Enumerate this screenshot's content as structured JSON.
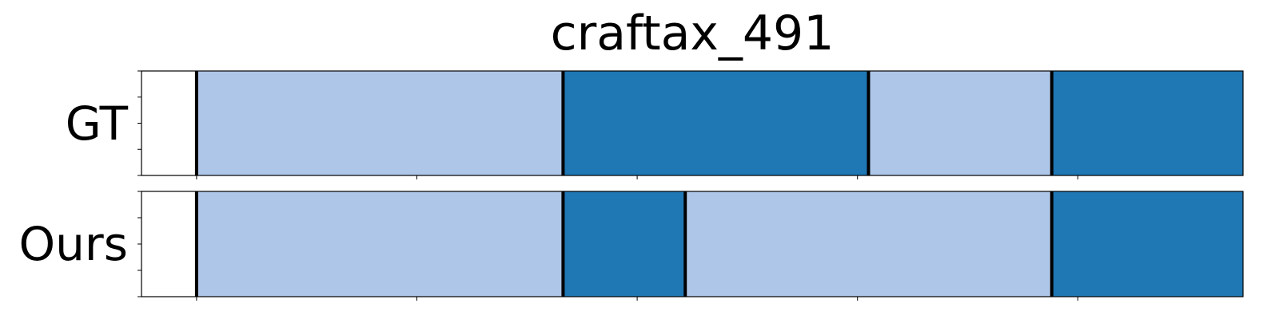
{
  "chart_data": {
    "type": "timeline-segmentation",
    "title": "craftax_491",
    "xlim": [
      0,
      110
    ],
    "x_ticks": [
      5.5,
      27.5,
      49.5,
      71.5,
      93.5
    ],
    "colors": {
      "light": "#aec7e8",
      "dark": "#1f77b4",
      "boundary": "#000000"
    },
    "rows": [
      {
        "label": "GT",
        "segments": [
          {
            "start": 5.5,
            "end": 42.1,
            "class": "light"
          },
          {
            "start": 42.1,
            "end": 72.6,
            "class": "dark"
          },
          {
            "start": 72.6,
            "end": 90.9,
            "class": "light"
          },
          {
            "start": 90.9,
            "end": 115.0,
            "class": "dark"
          }
        ],
        "boundaries": [
          5.5,
          42.1,
          72.6,
          90.9,
          115.0
        ]
      },
      {
        "label": "Ours",
        "segments": [
          {
            "start": 5.5,
            "end": 42.1,
            "class": "light"
          },
          {
            "start": 42.1,
            "end": 54.3,
            "class": "dark"
          },
          {
            "start": 54.3,
            "end": 90.9,
            "class": "light"
          },
          {
            "start": 90.9,
            "end": 115.0,
            "class": "dark"
          }
        ],
        "boundaries": [
          5.5,
          42.1,
          54.3,
          90.9,
          115.0
        ]
      }
    ]
  }
}
